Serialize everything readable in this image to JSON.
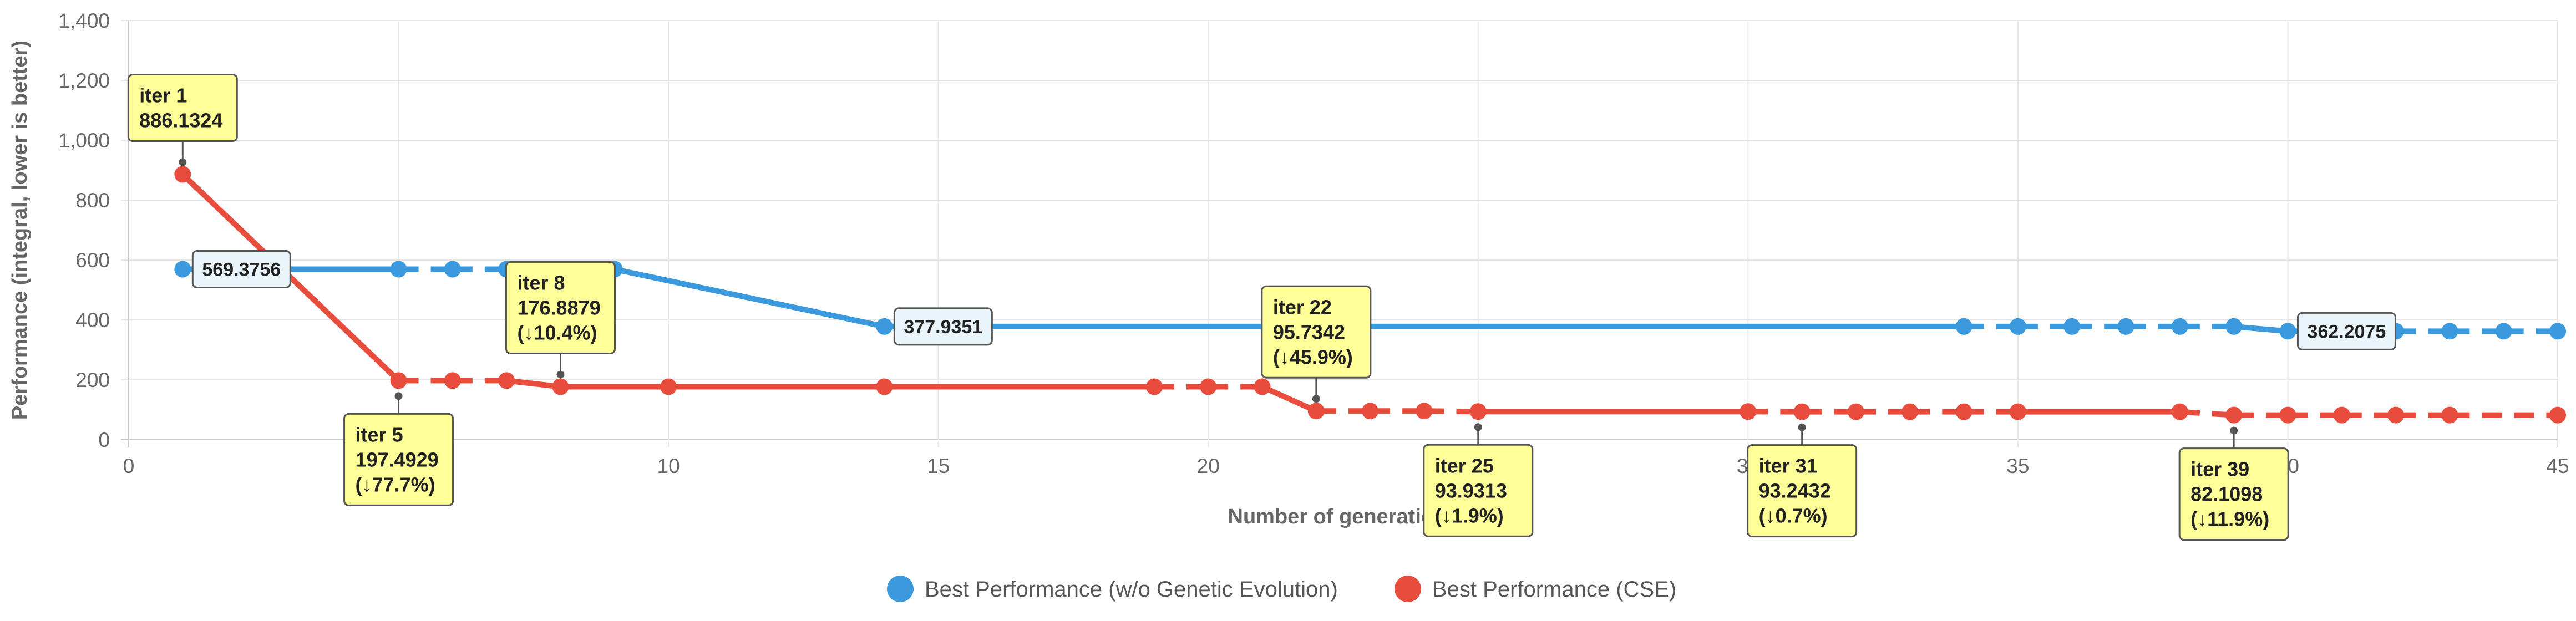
{
  "chart_data": {
    "type": "line",
    "xlabel": "Number of generations",
    "ylabel": "Performance (integral, lower is better)",
    "xlim": [
      0,
      45
    ],
    "ylim": [
      0,
      1400
    ],
    "x_ticks": [
      "0",
      "5",
      "10",
      "15",
      "20",
      "25",
      "30",
      "35",
      "40",
      "45"
    ],
    "y_ticks": [
      "0",
      "200",
      "400",
      "600",
      "800",
      "1,000",
      "1,200",
      "1,400"
    ],
    "grid": true,
    "legend_position": "bottom",
    "series": [
      {
        "name": "Best Performance (w/o Genetic Evolution)",
        "color": "#3b9ade",
        "points": [
          {
            "x": 1,
            "y": 569.3756
          },
          {
            "x": 5,
            "y": 569.3756
          },
          {
            "x": 6,
            "y": 569.3756
          },
          {
            "x": 7,
            "y": 569.3756
          },
          {
            "x": 9,
            "y": 569.3756
          },
          {
            "x": 14,
            "y": 377.9351
          },
          {
            "x": 34,
            "y": 377.9351
          },
          {
            "x": 35,
            "y": 377.9351
          },
          {
            "x": 36,
            "y": 377.9351
          },
          {
            "x": 37,
            "y": 377.9351
          },
          {
            "x": 38,
            "y": 377.9351
          },
          {
            "x": 39,
            "y": 377.9351
          },
          {
            "x": 40,
            "y": 362.2075
          },
          {
            "x": 41,
            "y": 362.2075
          },
          {
            "x": 42,
            "y": 362.2075
          },
          {
            "x": 43,
            "y": 362.2075
          },
          {
            "x": 44,
            "y": 362.2075
          },
          {
            "x": 45,
            "y": 362.2075
          }
        ],
        "dashed_segments": [
          [
            1,
            2
          ],
          [
            2,
            3
          ],
          [
            3,
            4
          ],
          [
            6,
            7
          ],
          [
            7,
            8
          ],
          [
            8,
            9
          ],
          [
            9,
            10
          ],
          [
            10,
            11
          ],
          [
            12,
            13
          ],
          [
            13,
            14
          ],
          [
            14,
            15
          ],
          [
            15,
            16
          ],
          [
            16,
            17
          ]
        ],
        "value_labels": [
          {
            "x": 1,
            "y": 569.3756,
            "text": "569.3756"
          },
          {
            "x": 14,
            "y": 377.9351,
            "text": "377.9351"
          },
          {
            "x": 40,
            "y": 362.2075,
            "text": "362.2075"
          }
        ]
      },
      {
        "name": "Best Performance (CSE)",
        "color": "#e84c3d",
        "points": [
          {
            "x": 1,
            "y": 886.1324
          },
          {
            "x": 5,
            "y": 197.4929
          },
          {
            "x": 6,
            "y": 197.4929
          },
          {
            "x": 7,
            "y": 197.4929
          },
          {
            "x": 8,
            "y": 176.8879
          },
          {
            "x": 10,
            "y": 176.8879
          },
          {
            "x": 14,
            "y": 176.8879
          },
          {
            "x": 19,
            "y": 176.8879
          },
          {
            "x": 20,
            "y": 176.8879
          },
          {
            "x": 21,
            "y": 176.8879
          },
          {
            "x": 22,
            "y": 95.7342
          },
          {
            "x": 23,
            "y": 95.7342
          },
          {
            "x": 24,
            "y": 95.7342
          },
          {
            "x": 25,
            "y": 93.9313
          },
          {
            "x": 30,
            "y": 93.9313
          },
          {
            "x": 31,
            "y": 93.2432
          },
          {
            "x": 32,
            "y": 93.2432
          },
          {
            "x": 33,
            "y": 93.2432
          },
          {
            "x": 34,
            "y": 93.2432
          },
          {
            "x": 35,
            "y": 93.2432
          },
          {
            "x": 38,
            "y": 93.2432
          },
          {
            "x": 39,
            "y": 82.1098
          },
          {
            "x": 40,
            "y": 82.1098
          },
          {
            "x": 41,
            "y": 82.1098
          },
          {
            "x": 42,
            "y": 82.1098
          },
          {
            "x": 43,
            "y": 82.1098
          },
          {
            "x": 45,
            "y": 82.1098
          }
        ],
        "dashed_segments": [
          [
            1,
            2
          ],
          [
            2,
            3
          ],
          [
            7,
            8
          ],
          [
            8,
            9
          ],
          [
            10,
            11
          ],
          [
            11,
            12
          ],
          [
            12,
            13
          ],
          [
            14,
            15
          ],
          [
            15,
            16
          ],
          [
            16,
            17
          ],
          [
            17,
            18
          ],
          [
            18,
            19
          ],
          [
            20,
            21
          ],
          [
            21,
            22
          ],
          [
            22,
            23
          ],
          [
            23,
            24
          ],
          [
            24,
            25
          ],
          [
            25,
            26
          ]
        ],
        "annotations": [
          {
            "x": 1,
            "y": 886.1324,
            "lines": [
              "iter 1",
              "886.1324"
            ],
            "side": "above"
          },
          {
            "x": 5,
            "y": 197.4929,
            "lines": [
              "iter 5",
              "197.4929",
              "(↓77.7%)"
            ],
            "side": "below"
          },
          {
            "x": 8,
            "y": 176.8879,
            "lines": [
              "iter 8",
              "176.8879",
              "(↓10.4%)"
            ],
            "side": "above"
          },
          {
            "x": 22,
            "y": 95.7342,
            "lines": [
              "iter 22",
              "95.7342",
              "(↓45.9%)"
            ],
            "side": "above"
          },
          {
            "x": 25,
            "y": 93.9313,
            "lines": [
              "iter 25",
              "93.9313",
              "(↓1.9%)"
            ],
            "side": "below"
          },
          {
            "x": 31,
            "y": 93.2432,
            "lines": [
              "iter 31",
              "93.2432",
              "(↓0.7%)"
            ],
            "side": "below"
          },
          {
            "x": 39,
            "y": 82.1098,
            "lines": [
              "iter 39",
              "82.1098",
              "(↓11.9%)"
            ],
            "side": "below"
          }
        ]
      }
    ]
  }
}
